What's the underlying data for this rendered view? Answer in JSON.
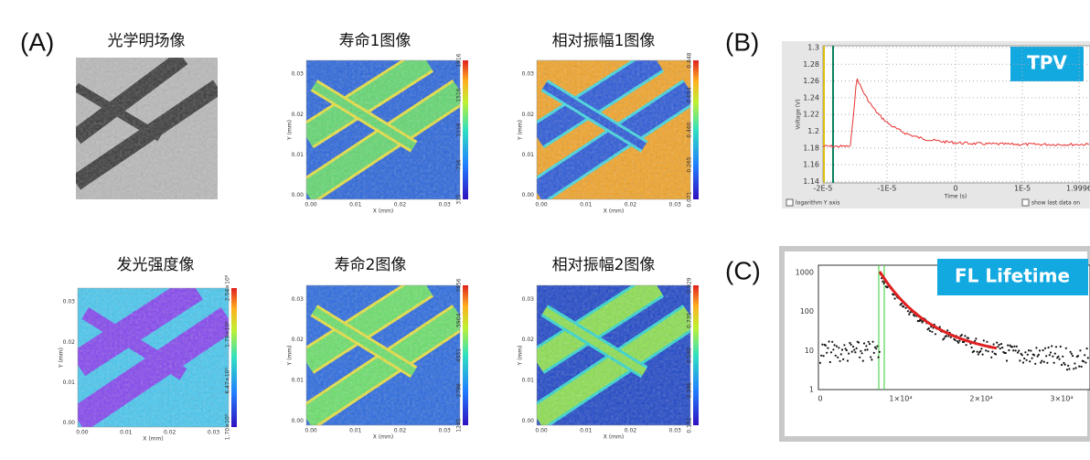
{
  "labels": {
    "a": "(A)",
    "b": "(B)",
    "c": "(C)"
  },
  "bright_field": {
    "title": "光学明场像"
  },
  "map_axes": {
    "xlabel": "X (mm)",
    "ylabel": "Y (mm)",
    "ticks": [
      "0.00",
      "0.01",
      "0.02",
      "0.03"
    ]
  },
  "maps": [
    {
      "title": "寿命1图像",
      "colorbar": [
        "315",
        "716",
        "1116",
        "1516",
        "1916"
      ]
    },
    {
      "title": "相对振幅1图像",
      "colorbar": [
        "0.071",
        "0.265",
        "0.460",
        "0.654",
        "0.848"
      ]
    },
    {
      "title": "发光强度像",
      "colorbar": [
        "1.70×10⁵",
        "6.47×10⁵",
        "1.79×10⁶",
        "2.54×10⁶"
      ]
    },
    {
      "title": "寿命2图像",
      "colorbar": [
        "1245",
        "2798",
        "4351",
        "5904",
        "7456"
      ]
    },
    {
      "title": "相对振幅2图像",
      "colorbar": [
        "0.152",
        "0.346",
        "0.540",
        "0.735",
        "0.929"
      ]
    }
  ],
  "tpv": {
    "badge": "TPV",
    "ylabel": "Voltage (V)",
    "xlabel": "Time (s)",
    "yticks": [
      "1.3",
      "1.28",
      "1.26",
      "1.24",
      "1.22",
      "1.2",
      "1.18",
      "1.16",
      "1.14"
    ],
    "xticks": [
      "-2E-5",
      "-1E-5",
      "0",
      "1E-5",
      "1.9996"
    ],
    "options": [
      "logarithm Y axis",
      "show last data on"
    ]
  },
  "fl": {
    "badge": "FL Lifetime",
    "yticks": [
      "1000",
      "100",
      "10",
      "1"
    ],
    "xticks": [
      "0",
      "1×10⁴",
      "2×10⁴",
      "3×10⁴"
    ]
  }
}
